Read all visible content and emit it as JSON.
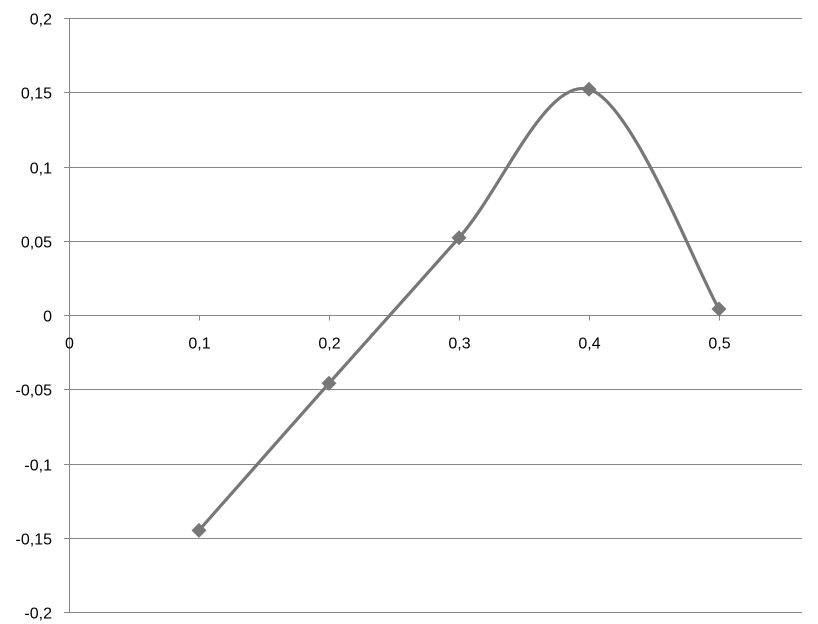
{
  "chart_data": {
    "type": "scatter",
    "title": "",
    "xlabel": "",
    "ylabel": "",
    "xlim": [
      0,
      0.5
    ],
    "ylim": [
      -0.2,
      0.2
    ],
    "grid": true,
    "smooth": true,
    "marker": "diamond",
    "x_ticks": [
      "0",
      "0,1",
      "0,2",
      "0,3",
      "0,4",
      "0,5"
    ],
    "y_ticks": [
      "0,2",
      "0,15",
      "0,1",
      "0,05",
      "0",
      "-0,05",
      "-0,1",
      "-0,15",
      "-0,2"
    ],
    "series": [
      {
        "color": "#777777",
        "points": [
          {
            "x": 0.1,
            "y": -0.145
          },
          {
            "x": 0.2,
            "y": -0.046
          },
          {
            "x": 0.3,
            "y": 0.052
          },
          {
            "x": 0.4,
            "y": 0.152
          },
          {
            "x": 0.5,
            "y": 0.004
          }
        ]
      }
    ]
  }
}
